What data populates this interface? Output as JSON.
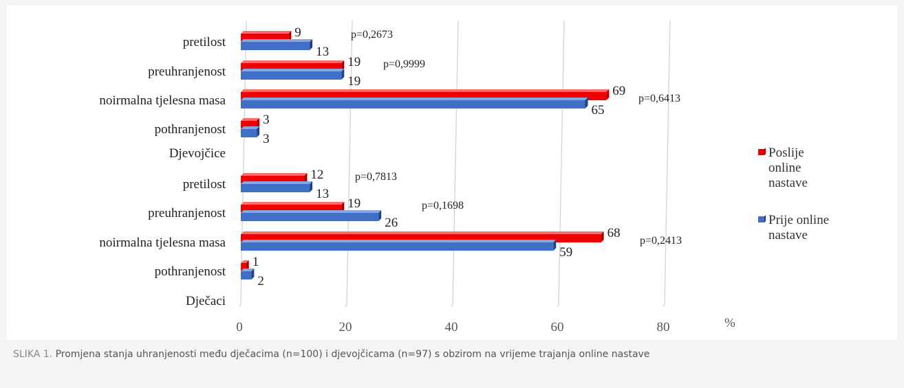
{
  "caption": {
    "label": "SLIKA 1.",
    "text": "Promjena stanja uhranjenosti među dječacima (n=100) i djevojčicama (n=97) s obzirom na vrijeme trajanja online nastave"
  },
  "chart_data": {
    "type": "bar",
    "orientation": "horizontal",
    "xlim": [
      0,
      100
    ],
    "x_ticks": [
      0,
      20,
      40,
      60,
      80
    ],
    "x_unit_label": "%",
    "grid": true,
    "legend_position": "right",
    "groups": [
      {
        "label": "Djevojčice",
        "categories": [
          {
            "label": "pretilost",
            "poslije": 9,
            "prije": 13,
            "p": "p=0,2673"
          },
          {
            "label": "preuhranjenost",
            "poslije": 19,
            "prije": 19,
            "p": "p=0,9999"
          },
          {
            "label": "noirmalna tjelesna masa",
            "poslije": 69,
            "prije": 65,
            "p": "p=0,6413"
          },
          {
            "label": "pothranjenost",
            "poslije": 3,
            "prije": 3,
            "p": ""
          }
        ]
      },
      {
        "label": "Dječaci",
        "categories": [
          {
            "label": "pretilost",
            "poslije": 12,
            "prije": 13,
            "p": "p=0,7813"
          },
          {
            "label": "preuhranjenost",
            "poslije": 19,
            "prije": 26,
            "p": "p=0,1698"
          },
          {
            "label": "noirmalna tjelesna masa",
            "poslije": 68,
            "prije": 59,
            "p": "p=0,2413"
          },
          {
            "label": "pothranjenost",
            "poslije": 1,
            "prije": 2,
            "p": ""
          }
        ]
      }
    ],
    "series": [
      {
        "key": "poslije",
        "name_lines": [
          "Poslije",
          "online",
          "nastave"
        ],
        "color": "#ee0000",
        "side_color": "#a00000",
        "top_color": "#ff6a6a"
      },
      {
        "key": "prije",
        "name_lines": [
          "Prije online",
          "nastave"
        ],
        "color": "#3f6fc7",
        "side_color": "#23427d",
        "top_color": "#86a6e2"
      }
    ]
  }
}
